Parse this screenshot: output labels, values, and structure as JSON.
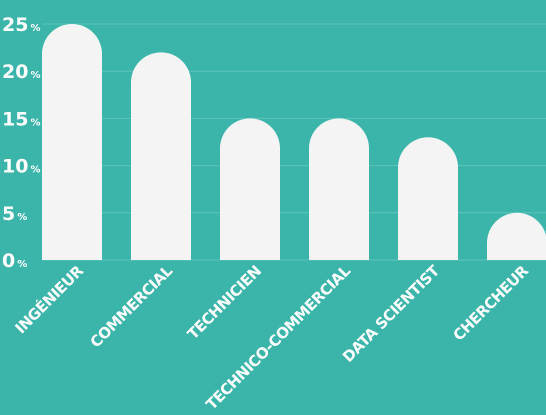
{
  "chart_data": {
    "type": "bar",
    "categories": [
      "INGÉNIEUR",
      "COMMERCIAL",
      "TECHNICIEN",
      "TECHNICO-COMMERCIAL",
      "DATA SCIENTIST",
      "CHERCHEUR"
    ],
    "values": [
      25,
      22,
      15,
      15,
      13,
      5
    ],
    "title": "",
    "xlabel": "",
    "ylabel": "",
    "ylim": [
      0,
      25
    ],
    "yticks": [
      0,
      5,
      10,
      15,
      20,
      25
    ],
    "ytick_unit": "%",
    "grid": true,
    "legend": "none",
    "bar_shape": "rounded-top",
    "colors": {
      "background": "#3bb5aa",
      "bar": "#f4f4f4",
      "grid": "#5cc4ba",
      "text": "#ffffff"
    }
  }
}
